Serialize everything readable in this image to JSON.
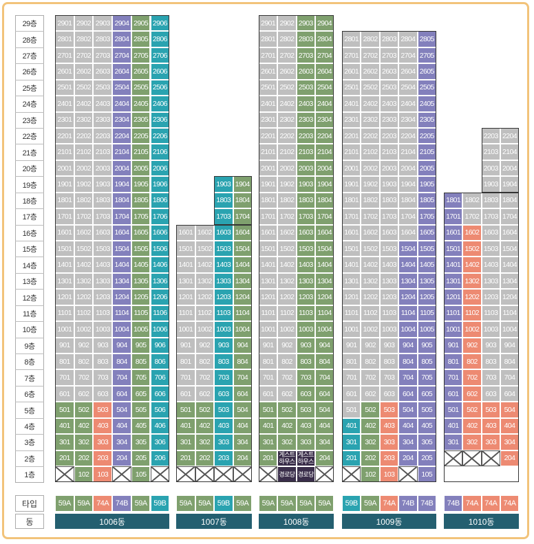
{
  "colors": {
    "gray": "#bfbfbf",
    "green": "#7fa06e",
    "purple": "#8380bc",
    "teal": "#2aa3b0",
    "salmon": "#ed8a72",
    "dark": "#3a2e4a",
    "dong_bar": "#245f70"
  },
  "floor_labels": [
    "29층",
    "28층",
    "27층",
    "26층",
    "25층",
    "24층",
    "23층",
    "22층",
    "21층",
    "20층",
    "19층",
    "18층",
    "17층",
    "16층",
    "15층",
    "14층",
    "13층",
    "12층",
    "11층",
    "10층",
    "9층",
    "8층",
    "7층",
    "6층",
    "5층",
    "4층",
    "3층",
    "2층",
    "1층"
  ],
  "row_labels": {
    "type": "타입",
    "dong": "동"
  },
  "buildings": [
    {
      "name": "1006동",
      "top_floor": 29,
      "line_colors": [
        "gray",
        "gray",
        "gray",
        "purple",
        "green",
        "teal"
      ],
      "low_colors": [
        [
          "green",
          "green",
          "salmon",
          "purple",
          "green",
          "teal"
        ],
        [
          "green",
          "green",
          "salmon",
          "purple",
          "green",
          "teal"
        ],
        [
          "green",
          "green",
          "salmon",
          "purple",
          "green",
          "teal"
        ],
        [
          "green",
          "green",
          "salmon",
          "purple",
          "green",
          "teal"
        ]
      ],
      "first_floor": [
        "x",
        "102",
        "103",
        "x",
        "105",
        "x"
      ],
      "first_colors": [
        "x",
        "green",
        "salmon",
        "x",
        "green",
        "x"
      ],
      "types": [
        "59A",
        "59A",
        "74A",
        "74B",
        "59A",
        "59B"
      ],
      "type_colors": [
        "green",
        "green",
        "salmon",
        "purple",
        "green",
        "teal"
      ]
    },
    {
      "name": "1007동",
      "top_floor": 16,
      "extra_top": {
        "cols": [
          2,
          3
        ],
        "top_floor": 19
      },
      "line_colors": [
        "gray",
        "gray",
        "teal",
        "green"
      ],
      "low_colors": [
        [
          "green",
          "green",
          "teal",
          "green"
        ],
        [
          "green",
          "green",
          "teal",
          "green"
        ],
        [
          "green",
          "green",
          "teal",
          "green"
        ],
        [
          "green",
          "green",
          "teal",
          "green"
        ]
      ],
      "first_floor": [
        "x",
        "x",
        "x",
        "x"
      ],
      "first_colors": [
        "x",
        "x",
        "x",
        "x"
      ],
      "types": [
        "59A",
        "59A",
        "59B",
        "59A"
      ],
      "type_colors": [
        "green",
        "green",
        "teal",
        "green"
      ]
    },
    {
      "name": "1008동",
      "top_floor": 29,
      "line_colors": [
        "gray",
        "gray",
        "green",
        "green"
      ],
      "low_colors": [
        [
          "green",
          "green",
          "green",
          "green"
        ],
        [
          "green",
          "green",
          "green",
          "green"
        ],
        [
          "green",
          "green",
          "green",
          "green"
        ],
        [
          "green",
          "dark",
          "dark",
          "green"
        ]
      ],
      "second_floor_override": [
        "201",
        "게스트\n하우스",
        "게스트\n하우스",
        "204"
      ],
      "first_floor": [
        "x",
        "경로당",
        "경로당",
        "x"
      ],
      "first_colors": [
        "x",
        "dark",
        "dark",
        "x"
      ],
      "types": [
        "59A",
        "59A",
        "59A",
        "59A"
      ],
      "type_colors": [
        "green",
        "green",
        "green",
        "green"
      ]
    },
    {
      "name": "1009동",
      "top_floor": 28,
      "line_colors": [
        "gray",
        "gray",
        "gray",
        "gray",
        "purple"
      ],
      "purple_from_floor_col3": 15,
      "low_colors": [
        [
          "gray",
          "green",
          "salmon",
          "purple",
          "purple"
        ],
        [
          "teal",
          "green",
          "salmon",
          "purple",
          "purple"
        ],
        [
          "teal",
          "green",
          "salmon",
          "purple",
          "purple"
        ],
        [
          "teal",
          "green",
          "salmon",
          "purple",
          "purple"
        ]
      ],
      "first_floor": [
        "x",
        "102",
        "103",
        "x",
        "105"
      ],
      "first_colors": [
        "x",
        "green",
        "salmon",
        "x",
        "purple"
      ],
      "types": [
        "59B",
        "59A",
        "74A",
        "74B",
        "74B"
      ],
      "type_colors": [
        "teal",
        "green",
        "salmon",
        "purple",
        "purple"
      ]
    },
    {
      "name": "1010동",
      "top_floor": 18,
      "extra_top": {
        "cols": [
          2,
          3
        ],
        "top_floor": 22
      },
      "line_colors": [
        "purple",
        "salmon",
        "gray",
        "gray"
      ],
      "low_colors": [
        [
          "purple",
          "salmon",
          "salmon",
          "salmon"
        ],
        [
          "purple",
          "salmon",
          "salmon",
          "salmon"
        ],
        [
          "purple",
          "salmon",
          "salmon",
          "salmon"
        ],
        [
          "xwide",
          "xwide",
          "xwide",
          "salmon"
        ]
      ],
      "first_floor": [
        "none",
        "none",
        "none",
        "none"
      ],
      "first_colors": [
        "none",
        "none",
        "none",
        "none"
      ],
      "types": [
        "74B",
        "74A",
        "74A",
        "74A"
      ],
      "type_colors": [
        "purple",
        "salmon",
        "salmon",
        "salmon"
      ]
    }
  ]
}
